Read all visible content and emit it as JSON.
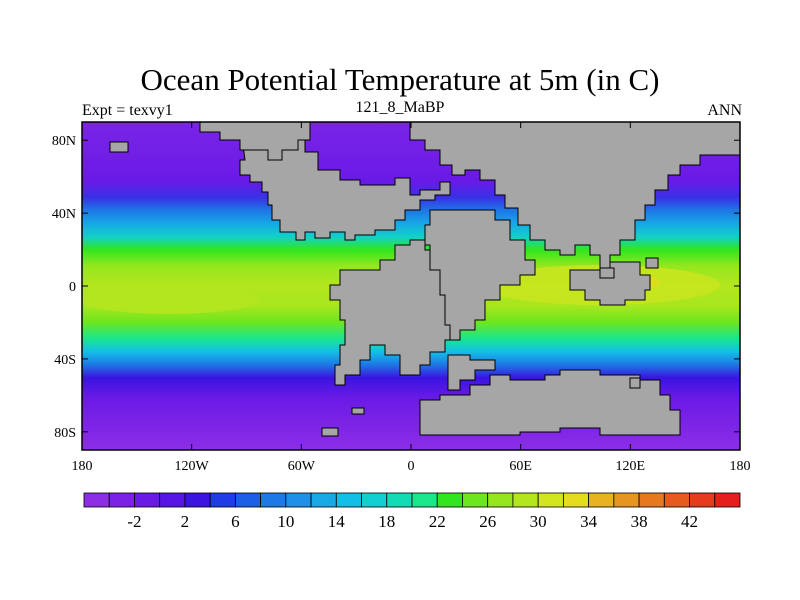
{
  "title": "Ocean Potential Temperature at 5m (in C)",
  "subtitle_left": "Expt = texvy1",
  "subtitle_center": "121_8_MaBP",
  "subtitle_right": "ANN",
  "map": {
    "lon_range": [
      -180,
      180
    ],
    "lat_range": [
      -90,
      90
    ],
    "x_ticks": [
      {
        "value": -180,
        "label": "180"
      },
      {
        "value": -120,
        "label": "120W"
      },
      {
        "value": -60,
        "label": "60W"
      },
      {
        "value": 0,
        "label": "0"
      },
      {
        "value": 60,
        "label": "60E"
      },
      {
        "value": 120,
        "label": "120E"
      },
      {
        "value": 180,
        "label": "180"
      }
    ],
    "y_ticks": [
      {
        "value": 80,
        "label": "80N"
      },
      {
        "value": 40,
        "label": "40N"
      },
      {
        "value": 0,
        "label": "0"
      },
      {
        "value": -40,
        "label": "40S"
      },
      {
        "value": -80,
        "label": "80S"
      }
    ],
    "land_color": "#a6a6a6"
  },
  "colorbar": {
    "colors": [
      "#8c2ee6",
      "#7c22e6",
      "#6a1ae6",
      "#5716e6",
      "#3a14e0",
      "#1f3ce6",
      "#1c5ee6",
      "#1e78e6",
      "#1e90e6",
      "#17a8e6",
      "#12c0e6",
      "#12d0d0",
      "#12dcb4",
      "#1ae68c",
      "#32e61e",
      "#6ee61e",
      "#96e61e",
      "#b4e61e",
      "#d2e61e",
      "#e6dc1e",
      "#e6b41e",
      "#e6961e",
      "#e6781e",
      "#e65a1e",
      "#e63c1e",
      "#e61e1e"
    ],
    "labels": [
      {
        "index": 1,
        "text": "-2"
      },
      {
        "index": 3,
        "text": "2"
      },
      {
        "index": 5,
        "text": "6"
      },
      {
        "index": 7,
        "text": "10"
      },
      {
        "index": 9,
        "text": "14"
      },
      {
        "index": 11,
        "text": "18"
      },
      {
        "index": 13,
        "text": "22"
      },
      {
        "index": 15,
        "text": "26"
      },
      {
        "index": 17,
        "text": "30"
      },
      {
        "index": 19,
        "text": "34"
      },
      {
        "index": 21,
        "text": "38"
      },
      {
        "index": 23,
        "text": "42"
      }
    ]
  }
}
